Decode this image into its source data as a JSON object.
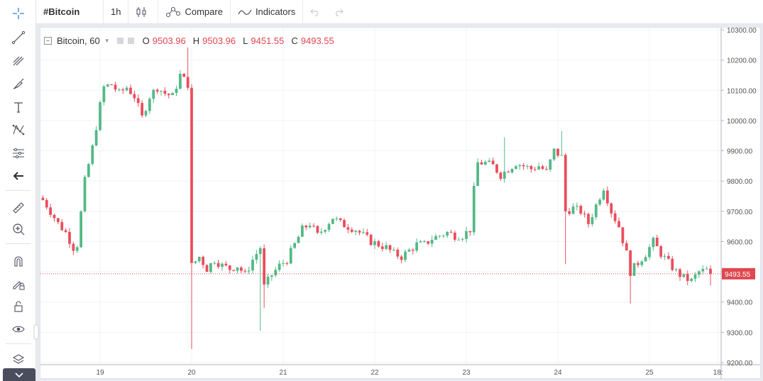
{
  "topbar": {
    "symbol": "#Bitcoin",
    "interval": "1h",
    "compare_label": "Compare",
    "indicators_label": "Indicators"
  },
  "legend": {
    "name": "Bitcoin, 60",
    "open_label": "O",
    "open": "9503.96",
    "high_label": "H",
    "high": "9503.96",
    "low_label": "L",
    "low": "9451.55",
    "close_label": "C",
    "close": "9493.55"
  },
  "colors": {
    "up": "#53b987",
    "down": "#eb4d5c",
    "price_line": "#e0474f",
    "grid": "#f0f3fa"
  },
  "toolbar_icons": [
    "crosshair-icon",
    "trend-line-icon",
    "fib-icon",
    "brush-icon",
    "text-icon",
    "pattern-icon",
    "prediction-icon",
    "back-arrow-icon",
    "ruler-icon",
    "zoom-in-icon",
    "magnet-icon",
    "lock-drawing-icon",
    "unlock-icon",
    "eye-icon",
    "layers-icon"
  ],
  "chart_data": {
    "type": "candlestick",
    "title": "",
    "interval": "60",
    "xlabel": "",
    "ylabel": "",
    "ylim": [
      9200,
      10300
    ],
    "y_ticks": [
      "9200.00",
      "9300.00",
      "9400.00",
      "9500.00",
      "9600.00",
      "9700.00",
      "9800.00",
      "9900.00",
      "10000.00",
      "10100.00",
      "10200.00",
      "10300.00"
    ],
    "x_ticks": [
      {
        "label": "19",
        "hour": 24
      },
      {
        "label": "20",
        "hour": 48
      },
      {
        "label": "21",
        "hour": 72
      },
      {
        "label": "22",
        "hour": 96
      },
      {
        "label": "23",
        "hour": 120
      },
      {
        "label": "24",
        "hour": 144
      },
      {
        "label": "25",
        "hour": 168
      },
      {
        "label": "18:",
        "hour": 186
      }
    ],
    "last_price": "9493.55",
    "last_price_value": 9493.55,
    "grid": true,
    "waypoints": [
      [
        8.5,
        9745
      ],
      [
        9.5,
        9730
      ],
      [
        11,
        9700
      ],
      [
        13,
        9660
      ],
      [
        15,
        9630
      ],
      [
        17,
        9580
      ],
      [
        18,
        9590
      ],
      [
        20,
        9800
      ],
      [
        22,
        9910
      ],
      [
        24,
        10050
      ],
      [
        25,
        10110
      ],
      [
        27,
        10120
      ],
      [
        29,
        10090
      ],
      [
        31,
        10110
      ],
      [
        33,
        10080
      ],
      [
        35,
        10010
      ],
      [
        37,
        10080
      ],
      [
        39,
        10110
      ],
      [
        41,
        10090
      ],
      [
        43,
        10080
      ],
      [
        45,
        10150
      ],
      [
        47,
        10120
      ],
      [
        48,
        9520
      ],
      [
        50,
        9550
      ],
      [
        52,
        9510
      ],
      [
        54,
        9540
      ],
      [
        56,
        9520
      ],
      [
        58,
        9510
      ],
      [
        60,
        9520
      ],
      [
        62,
        9490
      ],
      [
        64,
        9540
      ],
      [
        66,
        9580
      ],
      [
        67,
        9450
      ],
      [
        69,
        9490
      ],
      [
        71,
        9520
      ],
      [
        73,
        9540
      ],
      [
        75,
        9590
      ],
      [
        77,
        9640
      ],
      [
        79,
        9660
      ],
      [
        81,
        9620
      ],
      [
        83,
        9650
      ],
      [
        85,
        9680
      ],
      [
        87,
        9660
      ],
      [
        89,
        9650
      ],
      [
        91,
        9640
      ],
      [
        93,
        9620
      ],
      [
        95,
        9600
      ],
      [
        97,
        9590
      ],
      [
        99,
        9580
      ],
      [
        101,
        9560
      ],
      [
        103,
        9550
      ],
      [
        105,
        9570
      ],
      [
        107,
        9590
      ],
      [
        109,
        9590
      ],
      [
        111,
        9610
      ],
      [
        113,
        9620
      ],
      [
        115,
        9630
      ],
      [
        117,
        9620
      ],
      [
        119,
        9620
      ],
      [
        121,
        9640
      ],
      [
        122,
        9770
      ],
      [
        123,
        9860
      ],
      [
        125,
        9860
      ],
      [
        127,
        9850
      ],
      [
        129,
        9820
      ],
      [
        131,
        9840
      ],
      [
        133,
        9860
      ],
      [
        135,
        9850
      ],
      [
        137,
        9840
      ],
      [
        139,
        9850
      ],
      [
        141,
        9830
      ],
      [
        143,
        9900
      ],
      [
        145,
        9880
      ],
      [
        146,
        9700
      ],
      [
        148,
        9710
      ],
      [
        150,
        9700
      ],
      [
        152,
        9660
      ],
      [
        154,
        9720
      ],
      [
        156,
        9780
      ],
      [
        158,
        9700
      ],
      [
        160,
        9650
      ],
      [
        162,
        9560
      ],
      [
        163,
        9500
      ],
      [
        165,
        9530
      ],
      [
        167,
        9560
      ],
      [
        169,
        9600
      ],
      [
        171,
        9560
      ],
      [
        173,
        9530
      ],
      [
        175,
        9500
      ],
      [
        177,
        9480
      ],
      [
        179,
        9470
      ],
      [
        181,
        9500
      ],
      [
        183,
        9505
      ],
      [
        184,
        9493.55
      ]
    ],
    "spikes": [
      {
        "hour": 47.5,
        "high": 10250
      },
      {
        "hour": 48.2,
        "low": 9245
      },
      {
        "hour": 48.5,
        "low": 9455
      },
      {
        "hour": 66.5,
        "low": 9305
      },
      {
        "hour": 67.5,
        "low": 9380
      },
      {
        "hour": 130,
        "high": 9945
      },
      {
        "hour": 144.8,
        "high": 9965
      },
      {
        "hour": 145.7,
        "low": 9525
      },
      {
        "hour": 162.8,
        "low": 9395
      },
      {
        "hour": 184,
        "low": 9455
      }
    ]
  }
}
